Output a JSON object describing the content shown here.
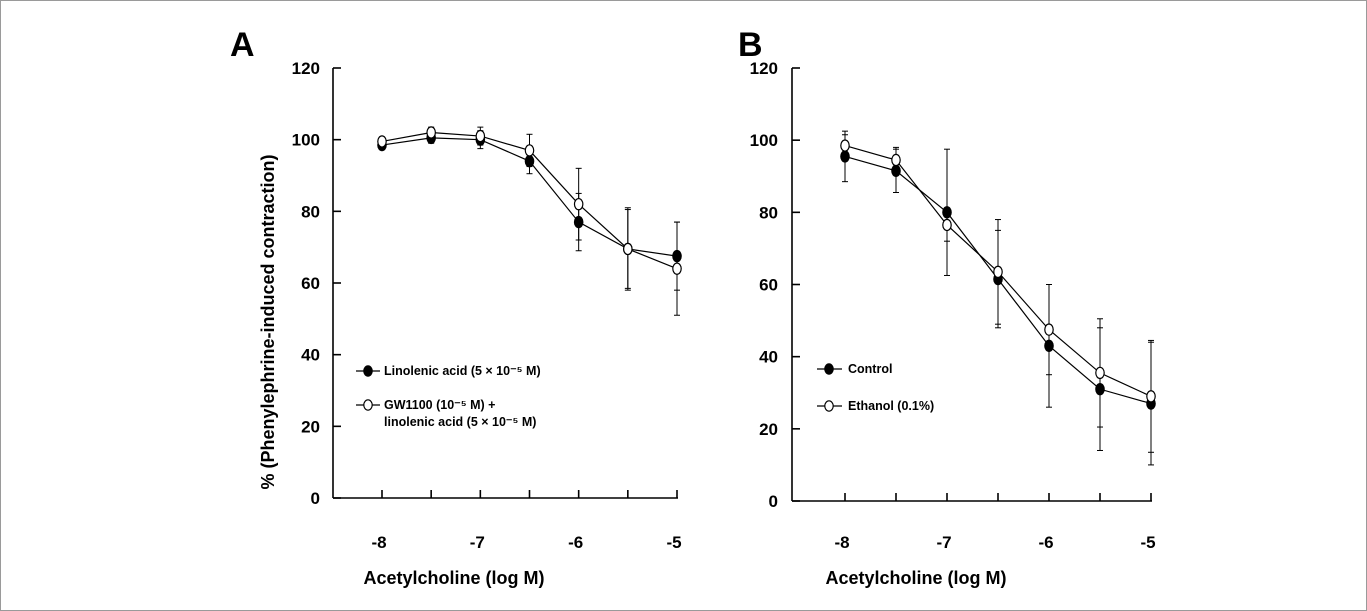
{
  "chart_data": [
    {
      "panel": "A",
      "type": "line",
      "ylabel": "% (Phenylephrine-induced contraction)",
      "xlabel": "Acetylcholine (log M)",
      "ylim": [
        0,
        120
      ],
      "yticks": [
        0,
        20,
        40,
        60,
        80,
        100,
        120
      ],
      "xlim": [
        -8,
        -5
      ],
      "xticks": [
        -8,
        -7,
        -6,
        -5
      ],
      "legend_position": "lower-left",
      "series": [
        {
          "name_lines": [
            "Linolenic acid (5 × 10⁻⁵ M)"
          ],
          "marker": "filled",
          "x": [
            -8,
            -7.5,
            -7,
            -6.5,
            -6,
            -5.5,
            -5
          ],
          "y": [
            98.5,
            100.5,
            100,
            94,
            77,
            69.5,
            67.5
          ],
          "err": [
            1,
            1.5,
            2.5,
            3.5,
            8,
            11,
            9.5
          ]
        },
        {
          "name_lines": [
            "GW1100 (10⁻⁵ M) +",
            "linolenic acid (5 × 10⁻⁵ M)"
          ],
          "marker": "open",
          "x": [
            -8,
            -7.5,
            -7,
            -6.5,
            -6,
            -5.5,
            -5
          ],
          "y": [
            99.5,
            102,
            101,
            97,
            82,
            69.5,
            64
          ],
          "err": [
            1,
            1.5,
            2.5,
            4.5,
            10,
            11.5,
            13
          ]
        }
      ]
    },
    {
      "panel": "B",
      "type": "line",
      "ylabel": "",
      "xlabel": "Acetylcholine (log M)",
      "ylim": [
        0,
        120
      ],
      "yticks": [
        0,
        20,
        40,
        60,
        80,
        100,
        120
      ],
      "xlim": [
        -8,
        -5
      ],
      "xticks": [
        -8,
        -7,
        -6,
        -5
      ],
      "legend_position": "lower-left",
      "series": [
        {
          "name_lines": [
            "Control"
          ],
          "marker": "filled",
          "x": [
            -8,
            -7.5,
            -7,
            -6.5,
            -6,
            -5.5,
            -5
          ],
          "y": [
            95.5,
            91.5,
            80,
            61.5,
            43,
            31,
            27
          ],
          "err": [
            7,
            6,
            17.5,
            13.5,
            17,
            17,
            17
          ]
        },
        {
          "name_lines": [
            "Ethanol (0.1%)"
          ],
          "marker": "open",
          "x": [
            -8,
            -7.5,
            -7,
            -6.5,
            -6,
            -5.5,
            -5
          ],
          "y": [
            98.5,
            94.5,
            76.5,
            63.5,
            47.5,
            35.5,
            29
          ],
          "err": [
            3,
            3.5,
            4.5,
            14.5,
            12.5,
            15,
            15.5
          ]
        }
      ]
    }
  ],
  "colors": {
    "ink": "#000000",
    "background": "#ffffff",
    "frame": "#9a9a9a"
  }
}
